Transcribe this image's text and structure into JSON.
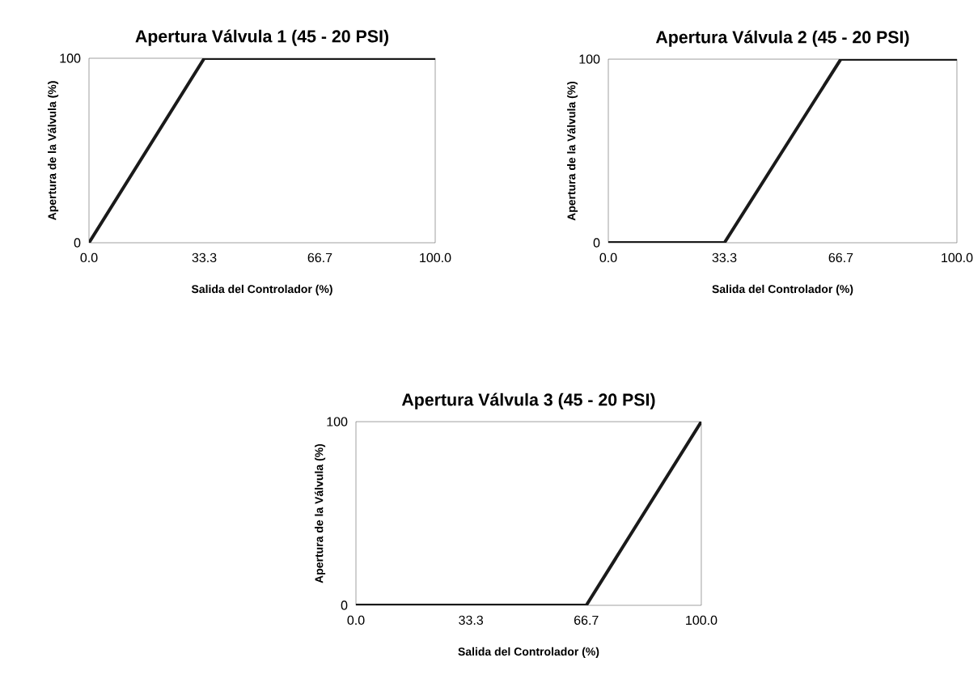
{
  "chart_data": [
    {
      "type": "line",
      "title": "Apertura Válvula 1 (45 - 20 PSI)",
      "xlabel": "Salida del Controlador (%)",
      "ylabel": "Apertura de la Válvula (%)",
      "x": [
        0,
        33.3,
        100
      ],
      "series": [
        {
          "color": "#1a1a1a",
          "values": [
            0,
            100,
            100
          ]
        }
      ],
      "xlim": [
        0,
        100
      ],
      "ylim": [
        0,
        100
      ],
      "xticks": [
        {
          "value": 0,
          "label": "0.0"
        },
        {
          "value": 33.3,
          "label": "33.3"
        },
        {
          "value": 66.7,
          "label": "66.7"
        },
        {
          "value": 100,
          "label": "100.0"
        }
      ],
      "yticks": [
        0,
        100
      ],
      "line_style": "solid"
    },
    {
      "type": "line",
      "title": "Apertura Válvula 2 (45 - 20 PSI)",
      "xlabel": "Salida del Controlador (%)",
      "ylabel": "Apertura de la Válvula (%)",
      "x": [
        0,
        33.3,
        66.7,
        100
      ],
      "series": [
        {
          "color": "#1a1a1a",
          "values": [
            0,
            0,
            100,
            100
          ]
        }
      ],
      "xlim": [
        0,
        100
      ],
      "ylim": [
        0,
        100
      ],
      "xticks": [
        {
          "value": 0,
          "label": "0.0"
        },
        {
          "value": 33.3,
          "label": "33.3"
        },
        {
          "value": 66.7,
          "label": "66.7"
        },
        {
          "value": 100,
          "label": "100.0"
        }
      ],
      "yticks": [
        0,
        100
      ],
      "line_style": "solid"
    },
    {
      "type": "line",
      "title": "Apertura Válvula 3 (45 - 20 PSI)",
      "xlabel": "Salida del Controlador (%)",
      "ylabel": "Apertura de la Válvula (%)",
      "x": [
        0,
        66.7,
        100
      ],
      "series": [
        {
          "color": "#1a1a1a",
          "values": [
            0,
            0,
            100
          ]
        }
      ],
      "xlim": [
        0,
        100
      ],
      "ylim": [
        0,
        100
      ],
      "xticks": [
        {
          "value": 0,
          "label": "0.0"
        },
        {
          "value": 33.3,
          "label": "33.3"
        },
        {
          "value": 66.7,
          "label": "66.7"
        },
        {
          "value": 100,
          "label": "100.0"
        }
      ],
      "yticks": [
        0,
        100
      ],
      "line_style": "solid"
    }
  ]
}
